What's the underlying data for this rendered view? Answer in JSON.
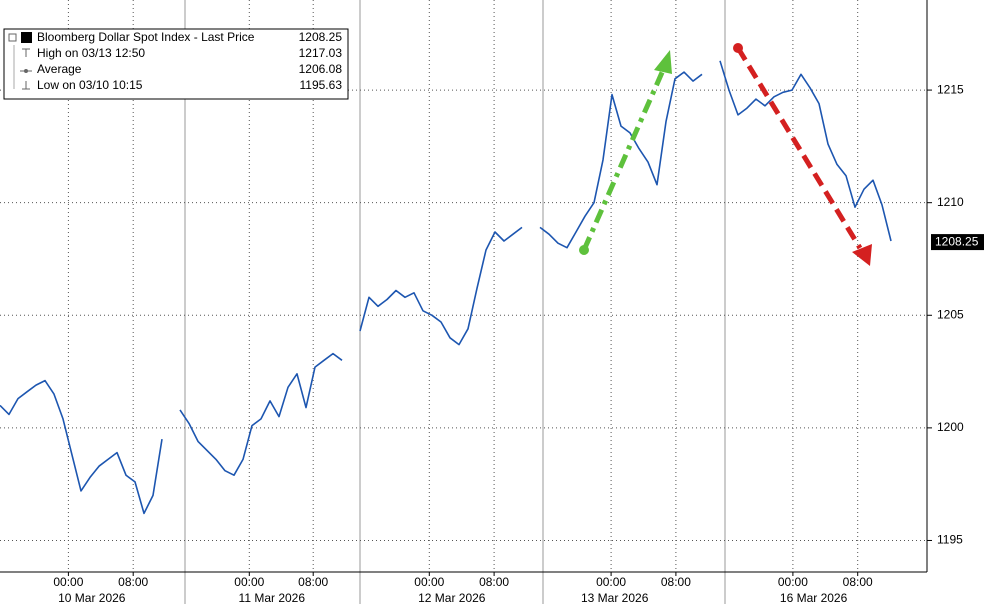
{
  "chart_data": {
    "type": "line",
    "series": [
      {
        "name": "Bloomberg Dollar Spot Index - Last Price",
        "color": "#1d56b0",
        "last_price": 1208.25,
        "values": [
          1201.0,
          1200.6,
          1201.3,
          1201.6,
          1201.9,
          1202.1,
          1201.5,
          1200.4,
          1198.8,
          1197.2,
          1197.8,
          1198.3,
          1198.6,
          1198.9,
          1197.9,
          1197.6,
          1196.2,
          1197.0,
          1199.5,
          null,
          1200.8,
          1200.2,
          1199.4,
          1199.0,
          1198.6,
          1198.1,
          1197.9,
          1198.6,
          1200.1,
          1200.4,
          1201.2,
          1200.5,
          1201.8,
          1202.4,
          1200.9,
          1202.7,
          1203.0,
          1203.3,
          1203.0,
          null,
          1204.3,
          1205.8,
          1205.4,
          1205.7,
          1206.1,
          1205.8,
          1206.0,
          1205.2,
          1205.0,
          1204.7,
          1204.0,
          1203.7,
          1204.4,
          1206.2,
          1207.9,
          1208.7,
          1208.3,
          1208.6,
          1208.9,
          null,
          1208.9,
          1208.6,
          1208.2,
          1208.0,
          1208.7,
          1209.4,
          1210.0,
          1211.9,
          1214.8,
          1213.4,
          1213.1,
          1212.4,
          1211.8,
          1210.8,
          1213.6,
          1215.5,
          1215.8,
          1215.4,
          1215.7,
          null,
          1216.3,
          1215.0,
          1213.9,
          1214.2,
          1214.6,
          1214.3,
          1214.7,
          1214.9,
          1215.0,
          1215.7,
          1215.1,
          1214.4,
          1212.6,
          1211.7,
          1211.2,
          1209.8,
          1210.6,
          1211.0,
          1209.9,
          1208.3
        ]
      }
    ],
    "legend_rows": [
      {
        "label": "High on 03/13 12:50",
        "value": 1217.03
      },
      {
        "label": "Average",
        "value": 1206.08
      },
      {
        "label": "Low on 03/10 10:15",
        "value": 1195.63
      }
    ],
    "xlim": [
      0,
      103
    ],
    "xticks": [
      {
        "value": 7.6,
        "label": "00:00"
      },
      {
        "value": 14.8,
        "label": "08:00"
      },
      {
        "value": 27.7,
        "label": "00:00"
      },
      {
        "value": 34.8,
        "label": "08:00"
      },
      {
        "value": 47.7,
        "label": "00:00"
      },
      {
        "value": 54.9,
        "label": "08:00"
      },
      {
        "value": 67.9,
        "label": "00:00"
      },
      {
        "value": 75.1,
        "label": "08:00"
      },
      {
        "value": 88.1,
        "label": "00:00"
      },
      {
        "value": 95.3,
        "label": "08:00"
      }
    ],
    "x_day_labels": [
      {
        "value": 10.2,
        "label": "10 Mar 2026"
      },
      {
        "value": 30.2,
        "label": "11 Mar 2026"
      },
      {
        "value": 50.2,
        "label": "12 Mar 2026"
      },
      {
        "value": 68.3,
        "label": "13 Mar 2026"
      },
      {
        "value": 90.4,
        "label": "16 Mar 2026"
      }
    ],
    "ylim": [
      1193.6,
      1219.0
    ],
    "yticks": [
      1195,
      1200,
      1205,
      1210,
      1215
    ],
    "grid": true
  }
}
